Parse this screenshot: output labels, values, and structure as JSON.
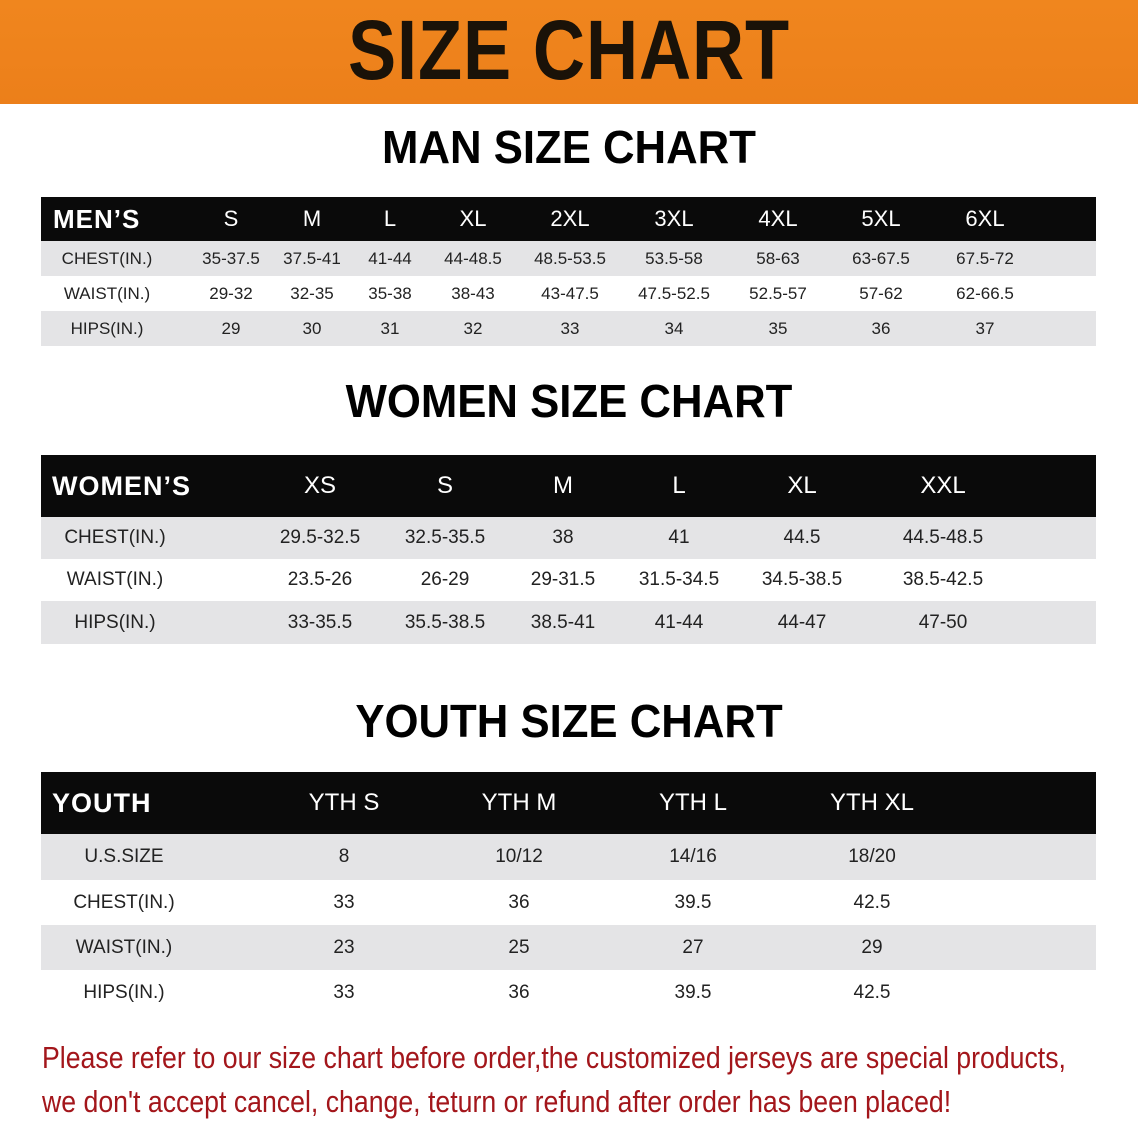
{
  "banner_title": "SIZE CHART",
  "men": {
    "title": "MAN SIZE CHART",
    "header": [
      "MEN’S",
      "S",
      "M",
      "L",
      "XL",
      "2XL",
      "3XL",
      "4XL",
      "5XL",
      "6XL"
    ],
    "rows": [
      [
        "CHEST(IN.)",
        "35-37.5",
        "37.5-41",
        "41-44",
        "44-48.5",
        "48.5-53.5",
        "53.5-58",
        "58-63",
        "63-67.5",
        "67.5-72"
      ],
      [
        "WAIST(IN.)",
        "29-32",
        "32-35",
        "35-38",
        "38-43",
        "43-47.5",
        "47.5-52.5",
        "52.5-57",
        "57-62",
        "62-66.5"
      ],
      [
        "HIPS(IN.)",
        "29",
        "30",
        "31",
        "32",
        "33",
        "34",
        "35",
        "36",
        "37"
      ]
    ]
  },
  "women": {
    "title": "WOMEN SIZE CHART",
    "header": [
      "WOMEN’S",
      "XS",
      "S",
      "M",
      "L",
      "XL",
      "XXL"
    ],
    "rows": [
      [
        "CHEST(IN.)",
        "29.5-32.5",
        "32.5-35.5",
        "38",
        "41",
        "44.5",
        "44.5-48.5"
      ],
      [
        "WAIST(IN.)",
        "23.5-26",
        "26-29",
        "29-31.5",
        "31.5-34.5",
        "34.5-38.5",
        "38.5-42.5"
      ],
      [
        "HIPS(IN.)",
        "33-35.5",
        "35.5-38.5",
        "38.5-41",
        "41-44",
        "44-47",
        "47-50"
      ]
    ]
  },
  "youth": {
    "title": "YOUTH SIZE CHART",
    "header": [
      "YOUTH",
      "YTH S",
      "YTH M",
      "YTH L",
      "YTH XL"
    ],
    "rows": [
      [
        "U.S.SIZE",
        "8",
        "10/12",
        "14/16",
        "18/20"
      ],
      [
        "CHEST(IN.)",
        "33",
        "36",
        "39.5",
        "42.5"
      ],
      [
        "WAIST(IN.)",
        "23",
        "25",
        "27",
        "29"
      ],
      [
        "HIPS(IN.)",
        "33",
        "36",
        "39.5",
        "42.5"
      ]
    ]
  },
  "footer": {
    "line1": "Please refer to our size chart before order,the customized jerseys are special products,",
    "line2": "we don't accept cancel, change, teturn or refund after order has been placed!"
  },
  "colors": {
    "banner": "#ee831c",
    "header_bg": "#0a0a0a",
    "row_gray": "#e4e4e6",
    "footer_text": "#a3161b"
  }
}
